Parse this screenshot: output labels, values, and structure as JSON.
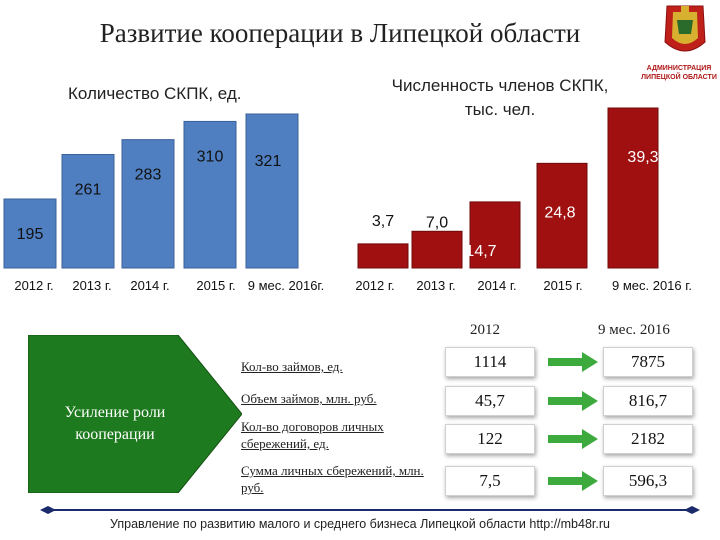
{
  "title": "Развитие кооперации в Липецкой области",
  "left_chart_title": "Количество СКПК, ед.",
  "right_chart_title_line1": "Численность членов СКПК,",
  "right_chart_title_line2": "тыс. чел.",
  "emblem_text_line1": "АДМИНИСТРАЦИЯ",
  "emblem_text_line2": "ЛИПЕЦКОЙ ОБЛАСТИ",
  "colors": {
    "blue_bar": "#4f7fc0",
    "red_bar": "#a01010",
    "green": "#1e7a1e",
    "arrow": "#3daa3d"
  },
  "chart_data": [
    {
      "type": "bar",
      "title": "Количество СКПК, ед.",
      "categories": [
        "2012 г.",
        "2013 г.",
        "2014 г.",
        "2015 г.",
        "9 мес. 2016г."
      ],
      "values": [
        195,
        261,
        283,
        310,
        321
      ],
      "value_labels": [
        "195",
        "261",
        "283",
        "310",
        "321"
      ],
      "ylim": [
        0,
        321
      ]
    },
    {
      "type": "bar",
      "title": "Численность членов СКПК, тыс. чел.",
      "categories": [
        "2012 г.",
        "2013 г.",
        "2014 г.",
        "2015 г.",
        "9 мес. 2016 г."
      ],
      "values": [
        3.7,
        7.0,
        14.7,
        24.8,
        39.3
      ],
      "value_labels": [
        "3,7",
        "7,0",
        "14,7",
        "24,8",
        "39,3"
      ],
      "ylim": [
        0,
        39.3
      ]
    }
  ],
  "table": {
    "col_2012": "2012",
    "col_2016": "9 мес. 2016",
    "label": "Усиление роли кооперации",
    "rows": [
      {
        "label": "Кол-во займов, ед.",
        "v2012": "1114",
        "v2016": "7875"
      },
      {
        "label": "Объем займов, млн. руб.",
        "v2012": "45,7",
        "v2016": "816,7"
      },
      {
        "label": "Кол-во договоров личных сбережений, ед.",
        "v2012": "122",
        "v2016": "2182"
      },
      {
        "label": "Сумма личных сбережений, млн. руб.",
        "v2012": "7,5",
        "v2016": "596,3"
      }
    ]
  },
  "footer": "Управление по развитию малого и среднего бизнеса Липецкой области http://mb48r.ru"
}
